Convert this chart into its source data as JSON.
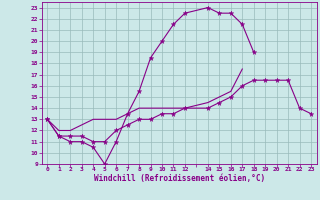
{
  "xlabel": "Windchill (Refroidissement éolien,°C)",
  "bg_color": "#cce8e8",
  "line_color": "#880088",
  "grid_color": "#99bbbb",
  "xlim": [
    -0.5,
    23.5
  ],
  "ylim": [
    9,
    23.5
  ],
  "xtick_labels": [
    "0",
    "1",
    "2",
    "3",
    "4",
    "5",
    "6",
    "7",
    "8",
    "9",
    "10",
    "11",
    "12",
    "",
    "14",
    "15",
    "16",
    "17",
    "18",
    "19",
    "20",
    "21",
    "22",
    "23"
  ],
  "xtick_pos": [
    0,
    1,
    2,
    3,
    4,
    5,
    6,
    7,
    8,
    9,
    10,
    11,
    12,
    13,
    14,
    15,
    16,
    17,
    18,
    19,
    20,
    21,
    22,
    23
  ],
  "yticks": [
    9,
    10,
    11,
    12,
    13,
    14,
    15,
    16,
    17,
    18,
    19,
    20,
    21,
    22,
    23
  ],
  "s1_x": [
    0,
    1,
    2,
    3,
    4,
    5,
    6,
    7,
    8,
    9,
    10,
    11,
    12,
    14,
    15,
    16,
    17,
    18,
    19,
    20,
    21
  ],
  "s1_y": [
    13,
    11.5,
    11,
    11,
    10.5,
    9.0,
    11,
    13.5,
    15.5,
    18.5,
    20,
    21.5,
    22.5,
    23,
    22.5,
    22.5,
    21.5,
    19,
    null,
    null,
    null
  ],
  "s2_x": [
    0,
    1,
    2,
    3,
    4,
    5,
    6,
    7,
    8,
    9,
    10,
    11,
    12,
    14,
    15,
    16,
    17,
    18,
    19,
    20,
    21,
    22,
    23
  ],
  "s2_y": [
    13,
    12,
    12,
    12.5,
    13,
    13,
    13,
    13.5,
    14,
    14,
    14,
    14,
    14,
    14.5,
    15,
    15.5,
    17.5,
    null,
    null,
    null,
    null,
    null,
    null
  ],
  "s3_x": [
    0,
    1,
    2,
    3,
    4,
    5,
    6,
    7,
    8,
    9,
    10,
    11,
    12,
    14,
    15,
    16,
    17,
    18,
    19,
    20,
    21,
    22,
    23
  ],
  "s3_y": [
    13,
    11.5,
    11.5,
    11.5,
    11,
    11,
    12,
    12.5,
    13,
    13,
    13.5,
    13.5,
    14,
    14,
    14.5,
    15,
    16,
    16.5,
    16.5,
    16.5,
    16.5,
    14,
    13.5
  ]
}
